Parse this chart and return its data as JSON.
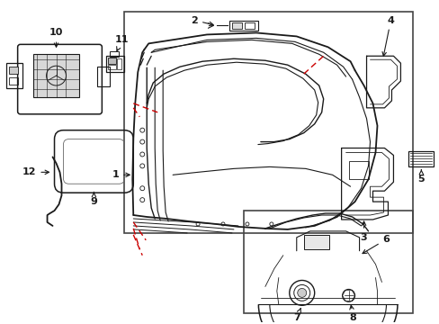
{
  "bg_color": "#ffffff",
  "line_color": "#1a1a1a",
  "red_dash_color": "#cc0000",
  "border_color": "#444444",
  "fig_width": 4.89,
  "fig_height": 3.6,
  "dpi": 100
}
